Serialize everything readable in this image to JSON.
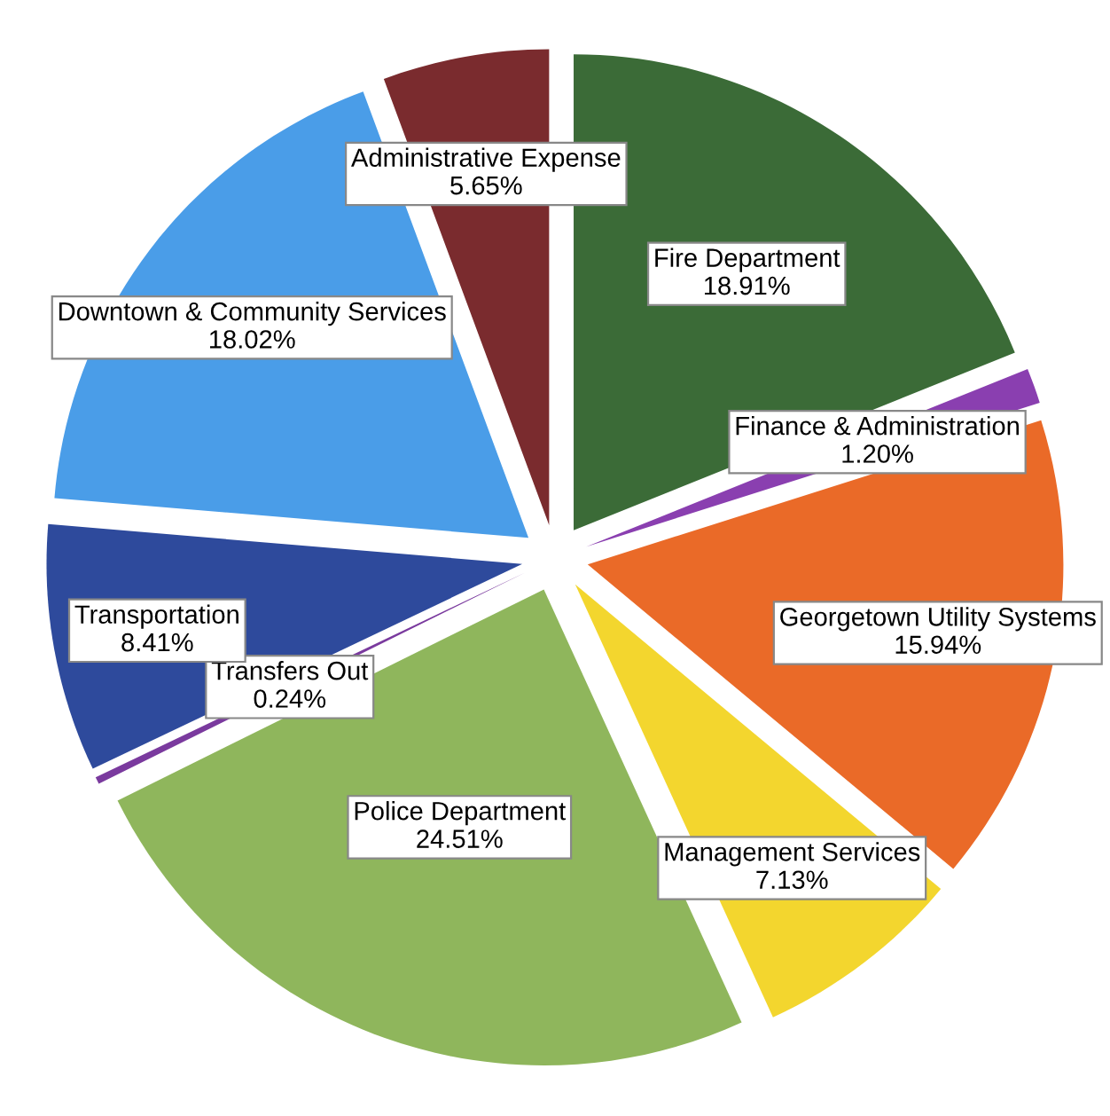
{
  "chart_data": {
    "type": "pie",
    "categories": [
      "Fire Department",
      "Finance & Administration",
      "Georgetown Utility Systems",
      "Management Services",
      "Police Department",
      "Transfers Out",
      "Transportation",
      "Downtown & Community Services",
      "Administrative Expense"
    ],
    "values": [
      18.91,
      1.2,
      15.94,
      7.13,
      24.51,
      0.24,
      8.41,
      18.02,
      5.65
    ],
    "value_labels": [
      "18.91%",
      "1.20%",
      "15.94%",
      "7.13%",
      "24.51%",
      "0.24%",
      "8.41%",
      "18.02%",
      "5.65%"
    ],
    "colors": [
      "#3b6b37",
      "#8a3fb0",
      "#ea6a28",
      "#f3d62e",
      "#8fb65c",
      "#7a3a9e",
      "#2e4a9c",
      "#4a9de8",
      "#7a2b2e"
    ],
    "legend": false
  }
}
